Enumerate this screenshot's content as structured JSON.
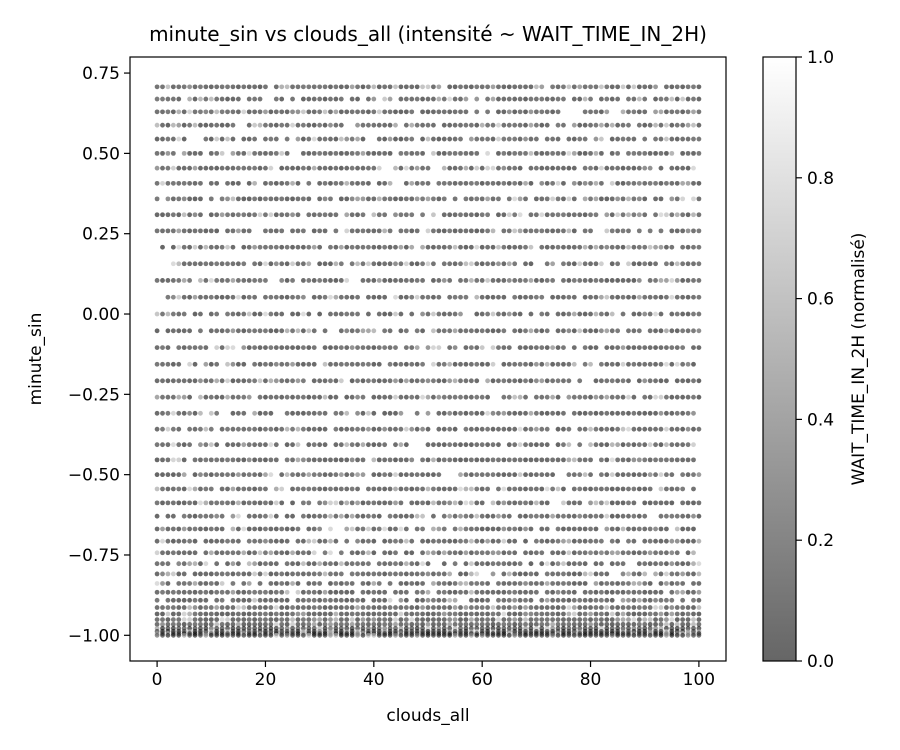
{
  "chart_data": {
    "type": "scatter",
    "title": "minute_sin vs clouds_all (intensité ~ WAIT_TIME_IN_2H)",
    "xlabel": "clouds_all",
    "ylabel": "minute_sin",
    "xlim": [
      -5,
      105
    ],
    "ylim": [
      -1.08,
      0.8
    ],
    "xticks": [
      0,
      20,
      40,
      60,
      80,
      100
    ],
    "xtick_labels": [
      "0",
      "20",
      "40",
      "60",
      "80",
      "100"
    ],
    "yticks": [
      -1.0,
      -0.75,
      -0.5,
      -0.25,
      0.0,
      0.25,
      0.5,
      0.75
    ],
    "ytick_labels": [
      "−1.00",
      "−0.75",
      "−0.50",
      "−0.25",
      "0.00",
      "0.25",
      "0.50",
      "0.75"
    ],
    "x_values": {
      "min": 0,
      "max": 100,
      "step": 1
    },
    "y_levels": [
      0.7071,
      0.6691,
      0.6293,
      0.5878,
      0.5446,
      0.5,
      0.454,
      0.4067,
      0.3584,
      0.309,
      0.2588,
      0.2079,
      0.1564,
      0.1045,
      0.0523,
      0.0,
      -0.0523,
      -0.1045,
      -0.1564,
      -0.2079,
      -0.2588,
      -0.309,
      -0.3584,
      -0.4067,
      -0.454,
      -0.5,
      -0.5446,
      -0.5878,
      -0.6293,
      -0.6691,
      -0.7071,
      -0.7431,
      -0.7771,
      -0.809,
      -0.8387,
      -0.866,
      -0.891,
      -0.9135,
      -0.9336,
      -0.9511,
      -0.9659,
      -0.9781,
      -0.9877,
      -0.9945,
      -1.0
    ],
    "marker_color_scale": "gray",
    "marker_alpha": 0.6,
    "grid": false,
    "colorbar": {
      "label": "WAIT_TIME_IN_2H (normalisé)",
      "range": [
        0.0,
        1.0
      ],
      "ticks": [
        0.0,
        0.2,
        0.4,
        0.6,
        0.8,
        1.0
      ],
      "tick_labels": [
        "0.0",
        "0.2",
        "0.4",
        "0.6",
        "0.8",
        "1.0"
      ]
    }
  }
}
